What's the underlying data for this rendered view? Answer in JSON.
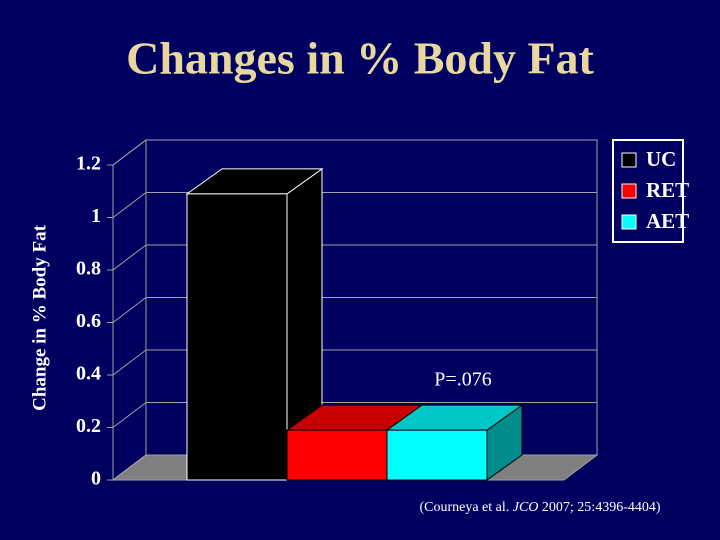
{
  "chart_data": {
    "type": "bar3d",
    "title": "Changes in % Body Fat",
    "ylabel": "Change in % Body Fat",
    "ylim": [
      0,
      1.2
    ],
    "yticks": [
      0,
      0.2,
      0.4,
      0.6,
      0.8,
      1,
      1.2
    ],
    "series": [
      {
        "name": "UC",
        "color": "#000000",
        "values": [
          1.09
        ]
      },
      {
        "name": "RET",
        "color": "#ff0000",
        "values": [
          0.19
        ]
      },
      {
        "name": "AET",
        "color": "#00ffff",
        "values": [
          0.19
        ]
      }
    ],
    "annotation": "P=.076",
    "source": [
      "(Courneya et al. ",
      "JCO",
      " 2007; 25:4396-4404)"
    ],
    "grid": true,
    "legend": "right"
  }
}
